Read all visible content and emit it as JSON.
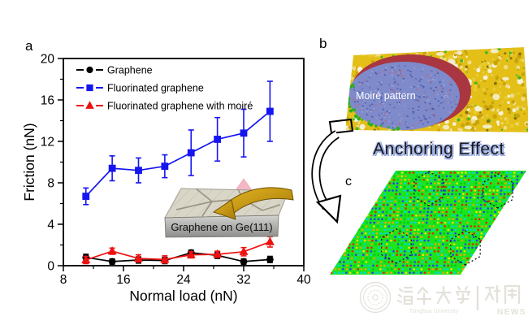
{
  "figure": {
    "panel_a_label": "a",
    "panel_b_label": "b",
    "panel_c_label": "c"
  },
  "chart_data": {
    "type": "line",
    "title": "",
    "xlabel": "Normal load (nN)",
    "ylabel": "Friction (nN)",
    "xlim": [
      8,
      40
    ],
    "ylim": [
      0,
      20
    ],
    "x_ticks": [
      8,
      16,
      24,
      32,
      40
    ],
    "y_ticks": [
      0,
      4,
      8,
      12,
      16,
      20
    ],
    "grid": false,
    "legend_position": "top-left",
    "x": [
      11,
      14.5,
      18,
      21.5,
      25,
      28.5,
      32,
      35.5
    ],
    "series": [
      {
        "name": "Graphene",
        "color": "#000000",
        "marker": "circle",
        "values": [
          0.8,
          0.4,
          0.55,
          0.5,
          1.25,
          1.0,
          0.4,
          0.6
        ],
        "errors": [
          0.3,
          0.25,
          0.3,
          0.3,
          0.25,
          0.3,
          0.25,
          0.3
        ]
      },
      {
        "name": "Fluorinated graphene",
        "color": "#1515f0",
        "marker": "square",
        "values": [
          6.7,
          9.4,
          9.2,
          9.6,
          10.9,
          12.2,
          12.8,
          14.9
        ],
        "errors": [
          0.8,
          1.2,
          1.2,
          1.1,
          2.2,
          2.1,
          2.3,
          2.9
        ]
      },
      {
        "name": "Fluorinated graphene with moiré",
        "color": "#ee1111",
        "marker": "triangle",
        "values": [
          0.55,
          1.4,
          0.7,
          0.6,
          1.05,
          1.1,
          1.35,
          2.3
        ],
        "errors": [
          0.35,
          0.3,
          0.35,
          0.35,
          0.3,
          0.3,
          0.4,
          0.5
        ]
      }
    ]
  },
  "inset": {
    "caption": "Graphene on Ge(111)"
  },
  "panel_b": {
    "caption": "Moiré pattern",
    "anchoring_text": "Anchoring Effect"
  },
  "watermark": {
    "university_cn": "清华大学",
    "university_en": "Tsinghua University",
    "news_cn": "新闻",
    "news_en": "NEWS"
  },
  "colors": {
    "series_graphene": "#000000",
    "series_fluorinated": "#1515f0",
    "series_moire": "#ee1111",
    "anchoring_shadow": "#93a6de",
    "lattice_background": "#1de41d",
    "afm_gold": "#e3bf18",
    "afm_moire_domain": "#7e8ac9",
    "afm_moire_rim": "#a93640"
  }
}
